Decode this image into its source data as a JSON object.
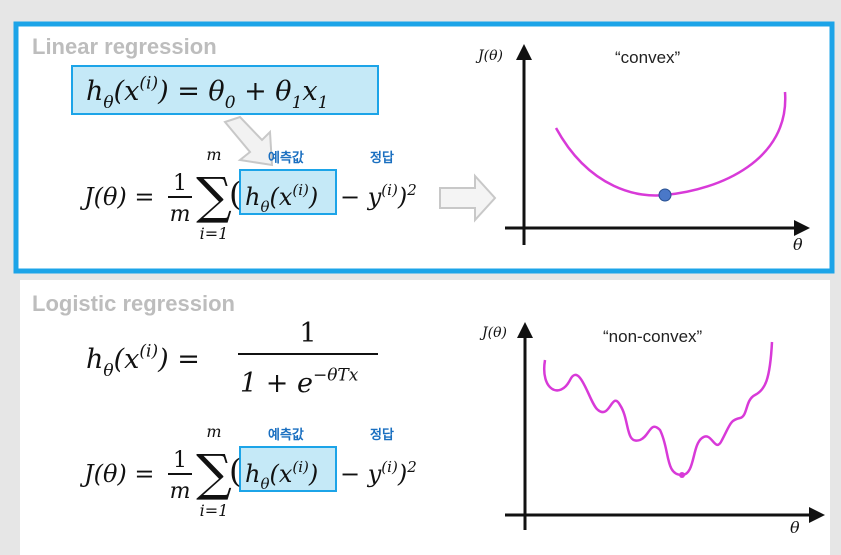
{
  "linear": {
    "title": "Linear regression",
    "hypothesis": [
      {
        "t": "h"
      },
      {
        "sub": "θ"
      },
      {
        "t": "(x"
      },
      {
        "sup": "(i)"
      },
      {
        "t": ")  =  θ"
      },
      {
        "sub": "0"
      },
      {
        "t": " + θ"
      },
      {
        "sub": "1"
      },
      {
        "t": "x"
      },
      {
        "sub": "1"
      }
    ],
    "cost": {
      "lhs": "J(θ) =",
      "numerator": "1",
      "denominator": "m",
      "sum": "∑",
      "sum_top": "m",
      "sum_bottom": "i=1",
      "open": "(",
      "prediction": [
        {
          "t": "h"
        },
        {
          "sub": "θ"
        },
        {
          "t": "(x"
        },
        {
          "sup": "(i)"
        },
        {
          "t": ")"
        }
      ],
      "rest": [
        {
          "t": "− y"
        },
        {
          "sup": "(i)"
        },
        {
          "t": ")"
        },
        {
          "sup": "2"
        }
      ],
      "prediction_label": "예측값",
      "answer_label": "정답"
    },
    "chart": {
      "y_label": "J(θ)",
      "x_label": "θ",
      "annotation": "“convex”"
    }
  },
  "logistic": {
    "title": "Logistic regression",
    "hypothesis": {
      "lhs": [
        {
          "t": "h"
        },
        {
          "sub": "θ"
        },
        {
          "t": "(x"
        },
        {
          "sup": "(i)"
        },
        {
          "t": ")  ="
        }
      ],
      "numerator": "1",
      "denominator": [
        {
          "t": "1 + e"
        },
        {
          "sup": "−θTx"
        }
      ]
    },
    "cost": {
      "lhs": "J(θ) =",
      "numerator": "1",
      "denominator": "m",
      "sum": "∑",
      "sum_top": "m",
      "sum_bottom": "i=1",
      "open": "(",
      "prediction": [
        {
          "t": "h"
        },
        {
          "sub": "θ"
        },
        {
          "t": "(x"
        },
        {
          "sup": "(i)"
        },
        {
          "t": ")"
        }
      ],
      "rest": [
        {
          "t": "− y"
        },
        {
          "sup": "(i)"
        },
        {
          "t": ")"
        },
        {
          "sup": "2"
        }
      ],
      "prediction_label": "예측값",
      "answer_label": "정답"
    },
    "chart": {
      "y_label": "J(θ)",
      "x_label": "θ",
      "annotation": "“non-convex”"
    }
  }
}
